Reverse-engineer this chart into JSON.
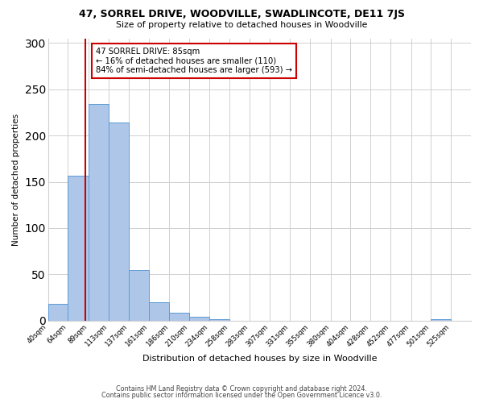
{
  "title": "47, SORREL DRIVE, WOODVILLE, SWADLINCOTE, DE11 7JS",
  "subtitle": "Size of property relative to detached houses in Woodville",
  "xlabel": "Distribution of detached houses by size in Woodville",
  "ylabel": "Number of detached properties",
  "bin_edges": [
    40,
    64,
    89,
    113,
    137,
    161,
    186,
    210,
    234,
    258,
    283,
    307,
    331,
    355,
    380,
    404,
    428,
    452,
    477,
    501,
    525
  ],
  "bar_heights": [
    18,
    157,
    234,
    214,
    55,
    20,
    9,
    4,
    2,
    0,
    0,
    0,
    0,
    0,
    0,
    0,
    0,
    0,
    0,
    2
  ],
  "bar_color": "#aec6e8",
  "bar_edge_color": "#5c9bd6",
  "marker_x": 85,
  "marker_label_line1": "47 SORREL DRIVE: 85sqm",
  "marker_label_line2": "← 16% of detached houses are smaller (110)",
  "marker_label_line3": "84% of semi-detached houses are larger (593) →",
  "annotation_box_color": "#ffffff",
  "annotation_box_edge_color": "#cc0000",
  "vline_color": "#cc0000",
  "ylim": [
    0,
    305
  ],
  "xlim": [
    40,
    549
  ],
  "tick_labels": [
    "40sqm",
    "64sqm",
    "89sqm",
    "113sqm",
    "137sqm",
    "161sqm",
    "186sqm",
    "210sqm",
    "234sqm",
    "258sqm",
    "283sqm",
    "307sqm",
    "331sqm",
    "355sqm",
    "380sqm",
    "404sqm",
    "428sqm",
    "452sqm",
    "477sqm",
    "501sqm",
    "525sqm"
  ],
  "footer_line1": "Contains HM Land Registry data © Crown copyright and database right 2024.",
  "footer_line2": "Contains public sector information licensed under the Open Government Licence v3.0.",
  "bg_color": "#ffffff",
  "grid_color": "#d0d0d0"
}
